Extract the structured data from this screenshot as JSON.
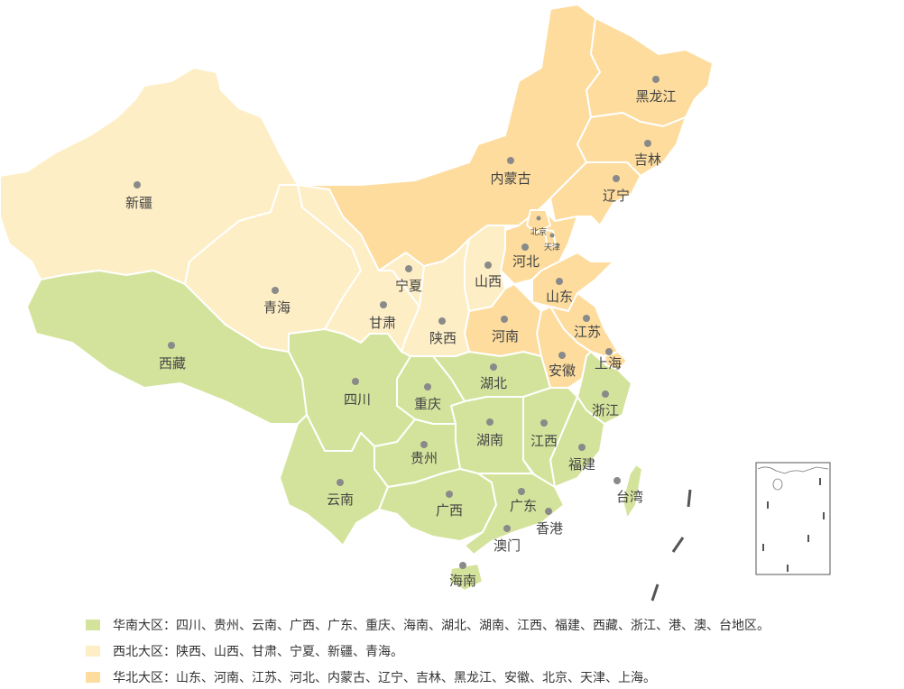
{
  "colors": {
    "south": "#d4e39c",
    "northwest": "#fdeec6",
    "north": "#fddc9e",
    "label": "#444444",
    "dot": "#8a8a8a"
  },
  "provinces": [
    {
      "id": "xinjiang",
      "name": "新疆",
      "region": "northwest"
    },
    {
      "id": "xizang",
      "name": "西藏",
      "region": "south"
    },
    {
      "id": "qinghai",
      "name": "青海",
      "region": "northwest"
    },
    {
      "id": "gansu",
      "name": "甘肃",
      "region": "northwest"
    },
    {
      "id": "ningxia",
      "name": "宁夏",
      "region": "northwest"
    },
    {
      "id": "neimenggu",
      "name": "内蒙古",
      "region": "north"
    },
    {
      "id": "heilongjiang",
      "name": "黑龙江",
      "region": "north"
    },
    {
      "id": "jilin",
      "name": "吉林",
      "region": "north"
    },
    {
      "id": "liaoning",
      "name": "辽宁",
      "region": "north"
    },
    {
      "id": "hebei",
      "name": "河北",
      "region": "north"
    },
    {
      "id": "beijing",
      "name": "北京",
      "region": "north"
    },
    {
      "id": "tianjin",
      "name": "天津",
      "region": "north"
    },
    {
      "id": "shanxi",
      "name": "山西",
      "region": "northwest"
    },
    {
      "id": "shandong",
      "name": "山东",
      "region": "north"
    },
    {
      "id": "henan",
      "name": "河南",
      "region": "north"
    },
    {
      "id": "shaanxi",
      "name": "陕西",
      "region": "northwest"
    },
    {
      "id": "jiangsu",
      "name": "江苏",
      "region": "north"
    },
    {
      "id": "shanghai",
      "name": "上海",
      "region": "north"
    },
    {
      "id": "anhui",
      "name": "安徽",
      "region": "north"
    },
    {
      "id": "zhejiang",
      "name": "浙江",
      "region": "south"
    },
    {
      "id": "fujian",
      "name": "福建",
      "region": "south"
    },
    {
      "id": "taiwan",
      "name": "台湾",
      "region": "south"
    },
    {
      "id": "jiangxi",
      "name": "江西",
      "region": "south"
    },
    {
      "id": "hubei",
      "name": "湖北",
      "region": "south"
    },
    {
      "id": "hunan",
      "name": "湖南",
      "region": "south"
    },
    {
      "id": "chongqing",
      "name": "重庆",
      "region": "south"
    },
    {
      "id": "sichuan",
      "name": "四川",
      "region": "south"
    },
    {
      "id": "guizhou",
      "name": "贵州",
      "region": "south"
    },
    {
      "id": "yunnan",
      "name": "云南",
      "region": "south"
    },
    {
      "id": "guangxi",
      "name": "广西",
      "region": "south"
    },
    {
      "id": "guangdong",
      "name": "广东",
      "region": "south"
    },
    {
      "id": "hainan",
      "name": "海南",
      "region": "south"
    },
    {
      "id": "xianggang",
      "name": "香港",
      "region": "south"
    },
    {
      "id": "aomen",
      "name": "澳门",
      "region": "south"
    }
  ],
  "legend": [
    {
      "region": "south",
      "text": "华南大区：四川、贵州、云南、广西、广东、重庆、海南、湖北、湖南、江西、福建、西藏、浙江、港、澳、台地区。"
    },
    {
      "region": "northwest",
      "text": "西北大区：陕西、山西、甘肃、宁夏、新疆、青海。"
    },
    {
      "region": "north",
      "text": "华北大区：山东、河南、江苏、河北、内蒙古、辽宁、吉林、黑龙江、安徽、北京、天津、上海。"
    }
  ]
}
